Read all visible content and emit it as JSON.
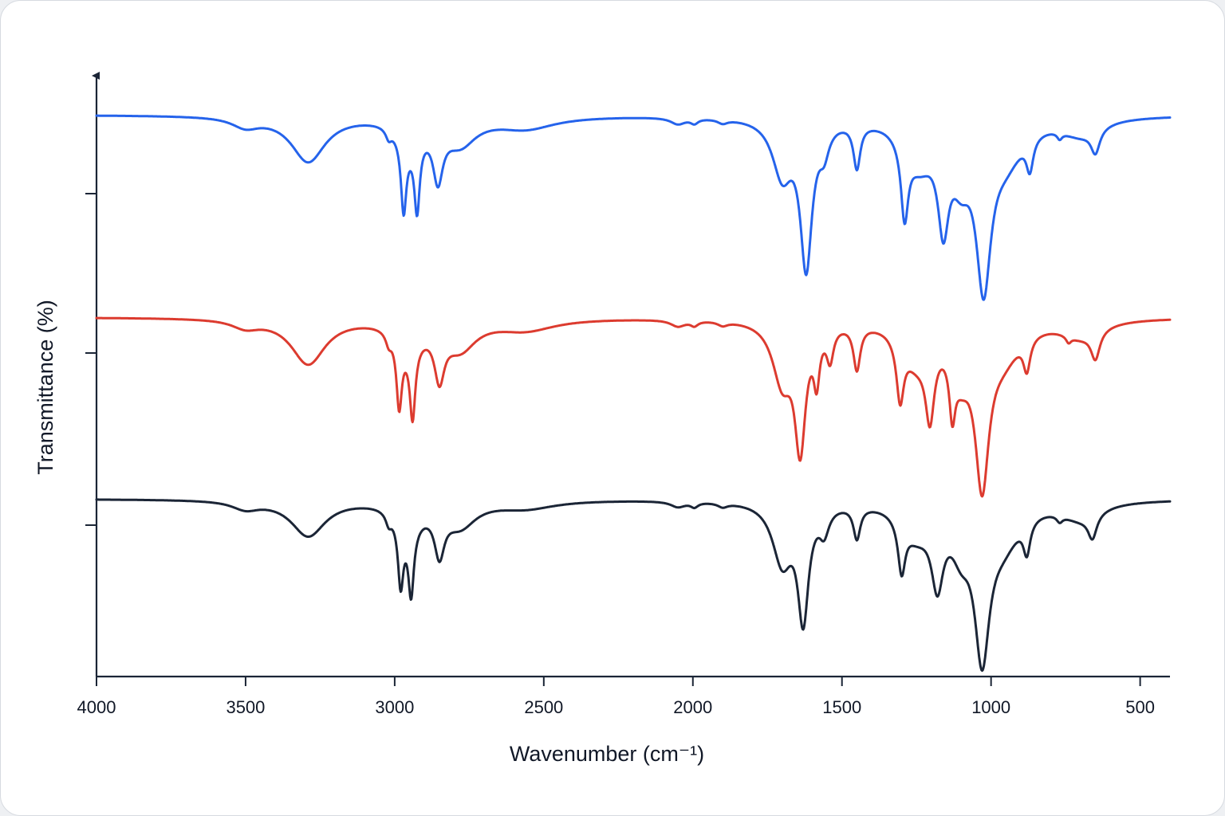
{
  "chart_data": {
    "type": "line",
    "title": "",
    "xlabel": "Wavenumber (cm⁻¹)",
    "ylabel": "Transmittance (%)",
    "xlim": [
      4000,
      400
    ],
    "x_reversed": true,
    "x_ticks": [
      4000,
      3500,
      3000,
      2500,
      2000,
      1500,
      1000,
      500
    ],
    "y_ticks_labeled": false,
    "grid": false,
    "legend": "none",
    "series": [
      {
        "color": "#2563eb",
        "baseline": 143,
        "peaks": [
          {
            "x": 3290,
            "depth": 57,
            "width": 70
          },
          {
            "x": 3500,
            "depth": 12,
            "width": 55
          },
          {
            "x": 3020,
            "depth": 12,
            "width": 12
          },
          {
            "x": 2970,
            "depth": 90,
            "width": 11
          },
          {
            "x": 2925,
            "depth": 88,
            "width": 11
          },
          {
            "x": 2855,
            "depth": 65,
            "width": 20
          },
          {
            "x": 2950,
            "depth": 25,
            "width": 50
          },
          {
            "x": 2780,
            "depth": 32,
            "width": 65
          },
          {
            "x": 2560,
            "depth": 15,
            "width": 120
          },
          {
            "x": 2050,
            "depth": 8,
            "width": 30
          },
          {
            "x": 1995,
            "depth": 6,
            "width": 15
          },
          {
            "x": 1900,
            "depth": 5,
            "width": 20
          },
          {
            "x": 1700,
            "depth": 70,
            "width": 40
          },
          {
            "x": 1620,
            "depth": 180,
            "width": 24
          },
          {
            "x": 1560,
            "depth": 30,
            "width": 20
          },
          {
            "x": 1450,
            "depth": 55,
            "width": 14
          },
          {
            "x": 1290,
            "depth": 95,
            "width": 15
          },
          {
            "x": 1160,
            "depth": 110,
            "width": 22
          },
          {
            "x": 1240,
            "depth": 50,
            "width": 60
          },
          {
            "x": 1025,
            "depth": 190,
            "width": 30
          },
          {
            "x": 1100,
            "depth": 55,
            "width": 40
          },
          {
            "x": 870,
            "depth": 40,
            "width": 14
          },
          {
            "x": 950,
            "depth": 45,
            "width": 70
          },
          {
            "x": 770,
            "depth": 8,
            "width": 10
          },
          {
            "x": 650,
            "depth": 30,
            "width": 18
          },
          {
            "x": 700,
            "depth": 20,
            "width": 80
          }
        ]
      },
      {
        "color": "#dc3b2f",
        "baseline": 397,
        "peaks": [
          {
            "x": 3290,
            "depth": 57,
            "width": 70
          },
          {
            "x": 3500,
            "depth": 10,
            "width": 55
          },
          {
            "x": 3020,
            "depth": 14,
            "width": 12
          },
          {
            "x": 2985,
            "depth": 85,
            "width": 11
          },
          {
            "x": 2940,
            "depth": 88,
            "width": 11
          },
          {
            "x": 2850,
            "depth": 60,
            "width": 20
          },
          {
            "x": 2950,
            "depth": 28,
            "width": 50
          },
          {
            "x": 2780,
            "depth": 35,
            "width": 65
          },
          {
            "x": 2560,
            "depth": 14,
            "width": 120
          },
          {
            "x": 2050,
            "depth": 8,
            "width": 30
          },
          {
            "x": 1995,
            "depth": 6,
            "width": 15
          },
          {
            "x": 1900,
            "depth": 5,
            "width": 20
          },
          {
            "x": 1700,
            "depth": 75,
            "width": 40
          },
          {
            "x": 1640,
            "depth": 150,
            "width": 22
          },
          {
            "x": 1585,
            "depth": 60,
            "width": 12
          },
          {
            "x": 1540,
            "depth": 40,
            "width": 14
          },
          {
            "x": 1450,
            "depth": 55,
            "width": 14
          },
          {
            "x": 1305,
            "depth": 75,
            "width": 15
          },
          {
            "x": 1205,
            "depth": 90,
            "width": 18
          },
          {
            "x": 1130,
            "depth": 70,
            "width": 12
          },
          {
            "x": 1250,
            "depth": 45,
            "width": 60
          },
          {
            "x": 1030,
            "depth": 185,
            "width": 28
          },
          {
            "x": 1100,
            "depth": 50,
            "width": 40
          },
          {
            "x": 880,
            "depth": 40,
            "width": 14
          },
          {
            "x": 960,
            "depth": 40,
            "width": 70
          },
          {
            "x": 650,
            "depth": 35,
            "width": 18
          },
          {
            "x": 740,
            "depth": 8,
            "width": 10
          },
          {
            "x": 700,
            "depth": 20,
            "width": 80
          }
        ]
      },
      {
        "color": "#1b2536",
        "baseline": 625,
        "peaks": [
          {
            "x": 3290,
            "depth": 45,
            "width": 70
          },
          {
            "x": 3500,
            "depth": 10,
            "width": 55
          },
          {
            "x": 3020,
            "depth": 14,
            "width": 12
          },
          {
            "x": 2980,
            "depth": 80,
            "width": 11
          },
          {
            "x": 2945,
            "depth": 82,
            "width": 11
          },
          {
            "x": 2850,
            "depth": 55,
            "width": 20
          },
          {
            "x": 2950,
            "depth": 28,
            "width": 50
          },
          {
            "x": 2780,
            "depth": 30,
            "width": 65
          },
          {
            "x": 2560,
            "depth": 10,
            "width": 120
          },
          {
            "x": 2050,
            "depth": 7,
            "width": 30
          },
          {
            "x": 1995,
            "depth": 6,
            "width": 15
          },
          {
            "x": 1900,
            "depth": 5,
            "width": 20
          },
          {
            "x": 1700,
            "depth": 75,
            "width": 40
          },
          {
            "x": 1630,
            "depth": 140,
            "width": 22
          },
          {
            "x": 1560,
            "depth": 30,
            "width": 20
          },
          {
            "x": 1450,
            "depth": 40,
            "width": 14
          },
          {
            "x": 1300,
            "depth": 65,
            "width": 15
          },
          {
            "x": 1180,
            "depth": 85,
            "width": 24
          },
          {
            "x": 1250,
            "depth": 35,
            "width": 60
          },
          {
            "x": 1030,
            "depth": 175,
            "width": 30
          },
          {
            "x": 1100,
            "depth": 45,
            "width": 40
          },
          {
            "x": 880,
            "depth": 40,
            "width": 14
          },
          {
            "x": 960,
            "depth": 45,
            "width": 70
          },
          {
            "x": 770,
            "depth": 8,
            "width": 12
          },
          {
            "x": 660,
            "depth": 30,
            "width": 18
          },
          {
            "x": 700,
            "depth": 20,
            "width": 80
          }
        ]
      }
    ]
  }
}
